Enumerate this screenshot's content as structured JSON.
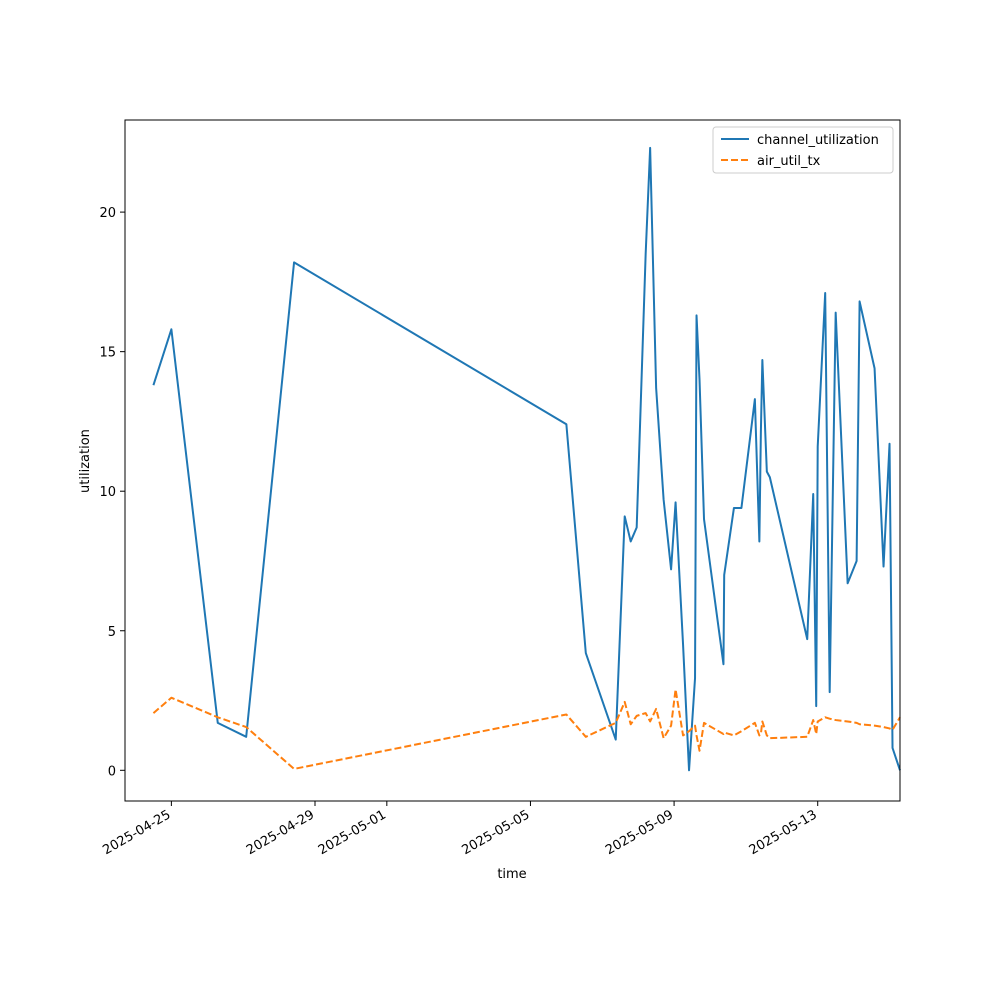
{
  "chart_data": {
    "type": "line",
    "title": "",
    "xlabel": "time",
    "ylabel": "utilization",
    "xlim": [
      "2025-04-23T17:00",
      "2025-05-15T07:00"
    ],
    "ylim": [
      -1.1,
      23.3
    ],
    "x_ticks": [
      "2025-04-25",
      "2025-04-29",
      "2025-05-01",
      "2025-05-05",
      "2025-05-09",
      "2025-05-13"
    ],
    "y_ticks": [
      0,
      5,
      10,
      15,
      20
    ],
    "grid": false,
    "legend_position": "top-right",
    "x": [
      "2025-04-24T12:00",
      "2025-04-25T00:00",
      "2025-04-26T07:00",
      "2025-04-27T02:00",
      "2025-04-28T10:00",
      "2025-05-06T00:00",
      "2025-05-06T13:00",
      "2025-05-07T09:00",
      "2025-05-07T15:00",
      "2025-05-07T19:00",
      "2025-05-07T23:00",
      "2025-05-08T05:00",
      "2025-05-08T08:00",
      "2025-05-08T12:00",
      "2025-05-08T17:00",
      "2025-05-08T22:00",
      "2025-05-09T01:00",
      "2025-05-09T06:00",
      "2025-05-09T10:00",
      "2025-05-09T14:00",
      "2025-05-09T15:00",
      "2025-05-09T17:00",
      "2025-05-09T20:00",
      "2025-05-10T09:00",
      "2025-05-10T09:30",
      "2025-05-10T16:00",
      "2025-05-10T21:00",
      "2025-05-11T06:00",
      "2025-05-11T09:00",
      "2025-05-11T10:00",
      "2025-05-11T11:00",
      "2025-05-11T14:00",
      "2025-05-11T16:00",
      "2025-05-12T17:00",
      "2025-05-12T21:00",
      "2025-05-12T23:00",
      "2025-05-13T00:00",
      "2025-05-13T05:00",
      "2025-05-13T08:00",
      "2025-05-13T12:00",
      "2025-05-13T20:00",
      "2025-05-14T02:00",
      "2025-05-14T04:00",
      "2025-05-14T14:00",
      "2025-05-14T20:00",
      "2025-05-15T00:00",
      "2025-05-15T02:00",
      "2025-05-15T07:00"
    ],
    "series": [
      {
        "name": "channel_utilization",
        "color": "#1f77b4",
        "dash": "solid",
        "values": [
          13.8,
          15.8,
          1.7,
          1.2,
          18.2,
          12.4,
          4.2,
          1.1,
          9.1,
          8.2,
          8.7,
          18.5,
          22.3,
          13.7,
          9.7,
          7.2,
          9.6,
          4.5,
          0.0,
          3.3,
          16.3,
          14.0,
          9.0,
          3.8,
          7.0,
          9.4,
          9.4,
          13.3,
          8.2,
          12.1,
          14.7,
          10.7,
          10.5,
          4.7,
          9.9,
          2.3,
          11.6,
          17.1,
          2.8,
          16.4,
          6.7,
          7.5,
          16.8,
          14.4,
          7.3,
          11.7,
          0.8,
          0.0
        ]
      },
      {
        "name": "air_util_tx",
        "color": "#ff7f0e",
        "dash": "dashed",
        "values": [
          2.05,
          2.6,
          1.9,
          1.55,
          0.05,
          2.0,
          1.2,
          1.7,
          2.45,
          1.65,
          1.95,
          2.05,
          1.75,
          2.2,
          1.15,
          1.6,
          2.9,
          1.25,
          1.4,
          1.6,
          1.25,
          0.7,
          1.7,
          1.3,
          1.35,
          1.25,
          1.4,
          1.7,
          1.25,
          1.3,
          1.75,
          1.25,
          1.15,
          1.2,
          1.8,
          1.3,
          1.75,
          1.9,
          1.85,
          1.8,
          1.75,
          1.7,
          1.65,
          1.6,
          1.55,
          1.5,
          1.45,
          1.9
        ]
      }
    ]
  }
}
